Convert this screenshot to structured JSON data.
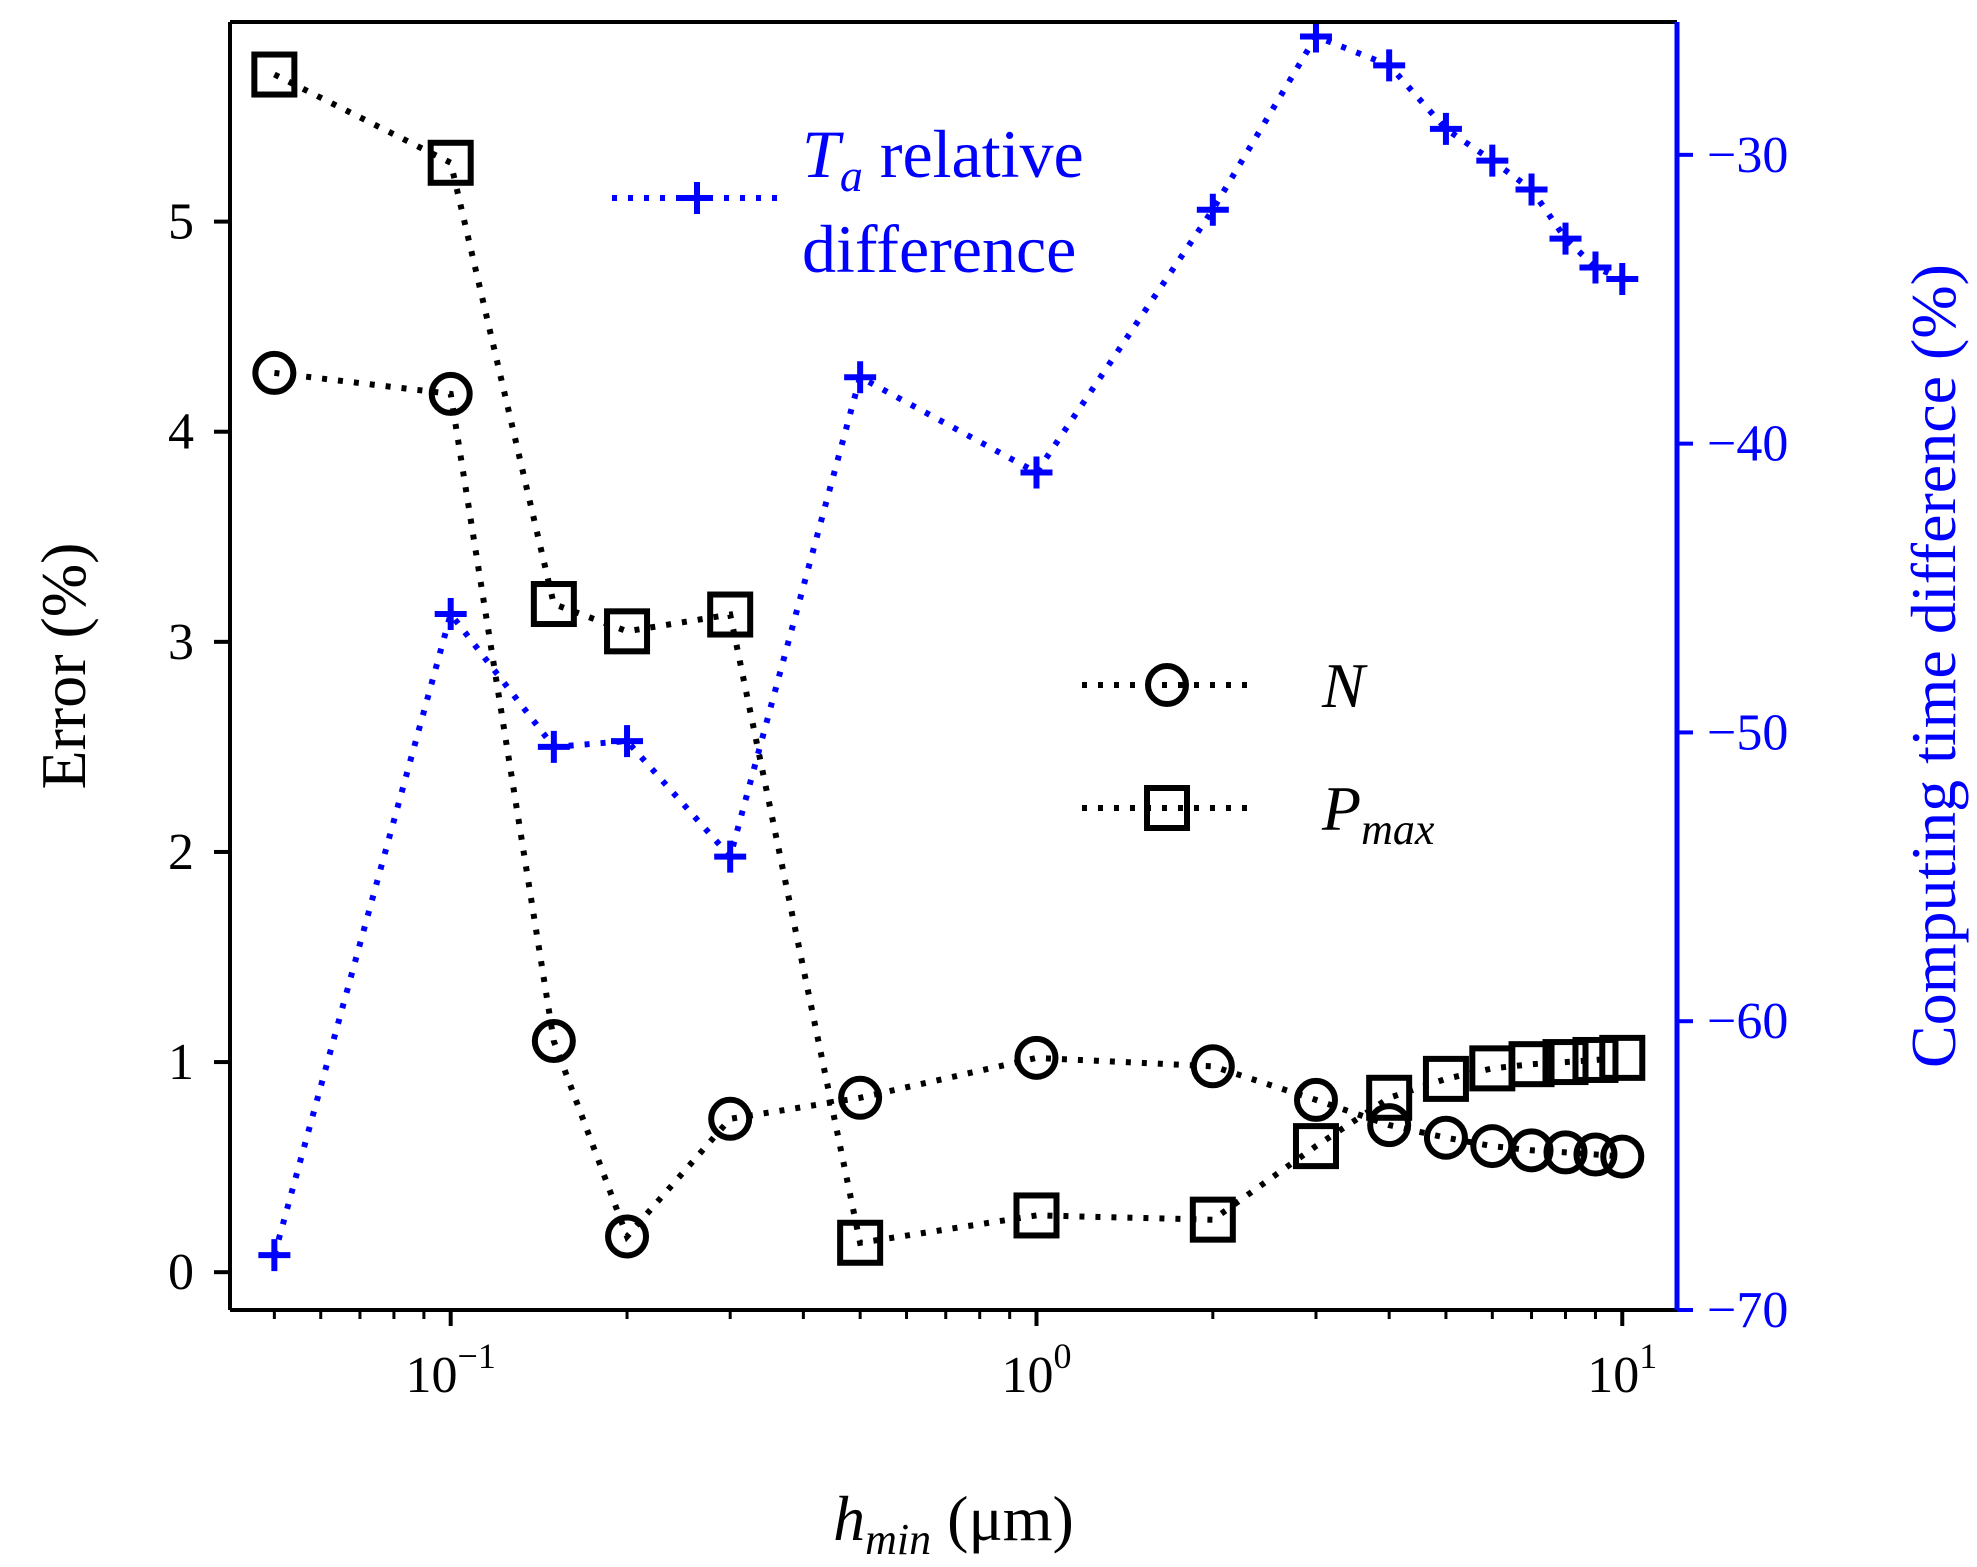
{
  "chart_data": {
    "type": "line",
    "x_scale": "log",
    "xlabel": {
      "main": "h",
      "sub": "min",
      "unit": "(μm)"
    },
    "ylabel": "Error (%)",
    "y2label": "Computing time difference (%)",
    "xlim": [
      0.042,
      12.4
    ],
    "ylim": [
      -0.18,
      5.95
    ],
    "y2lim": [
      -70,
      -25.4
    ],
    "x_ticks": [
      {
        "value": 0.1,
        "base": "10",
        "exp": "−1"
      },
      {
        "value": 1,
        "base": "10",
        "exp": "0"
      },
      {
        "value": 10,
        "base": "10",
        "exp": "1"
      }
    ],
    "y_ticks": [
      0,
      1,
      2,
      3,
      4,
      5
    ],
    "y2_ticks": [
      -70,
      -60,
      -50,
      -40,
      -30
    ],
    "x": [
      0.05,
      0.1,
      0.15,
      0.2,
      0.3,
      0.5,
      1,
      2,
      3,
      4,
      5,
      6,
      7,
      8,
      9,
      10
    ],
    "series": [
      {
        "name": "N",
        "axis": "left",
        "marker": "circle",
        "color": "#000000",
        "values": [
          4.28,
          4.18,
          1.1,
          0.17,
          0.73,
          0.83,
          1.02,
          0.98,
          0.82,
          0.7,
          0.64,
          0.6,
          0.58,
          0.57,
          0.56,
          0.55
        ]
      },
      {
        "name": "P_max",
        "axis": "left",
        "marker": "square",
        "color": "#000000",
        "values": [
          5.7,
          5.28,
          3.18,
          3.05,
          3.13,
          0.14,
          0.27,
          0.25,
          0.6,
          0.83,
          0.92,
          0.97,
          0.99,
          1.0,
          1.01,
          1.02
        ]
      },
      {
        "name": "T_a relative difference",
        "axis": "right",
        "marker": "plus",
        "color": "#0000ff",
        "values": [
          -68.1,
          -45.9,
          -50.5,
          -50.3,
          -54.3,
          -37.7,
          -41.0,
          -31.9,
          -25.9,
          -26.9,
          -29.1,
          -30.2,
          -31.2,
          -32.9,
          -33.9,
          -34.3
        ]
      }
    ],
    "legend": [
      {
        "series": 0,
        "label_main": "N",
        "label_sub": "",
        "position": "center-right"
      },
      {
        "series": 1,
        "label_main": "P",
        "label_sub": "max",
        "position": "center-right"
      }
    ],
    "annotation": {
      "series": 2,
      "line1_main": "T",
      "line1_sub": "a",
      "line1_rest": " relative",
      "line2": "difference",
      "position": "top-center"
    },
    "colors": {
      "left_axis": "#000000",
      "right_axis": "#0000ff",
      "black_series": "#000000",
      "blue_series": "#0000ff"
    }
  }
}
